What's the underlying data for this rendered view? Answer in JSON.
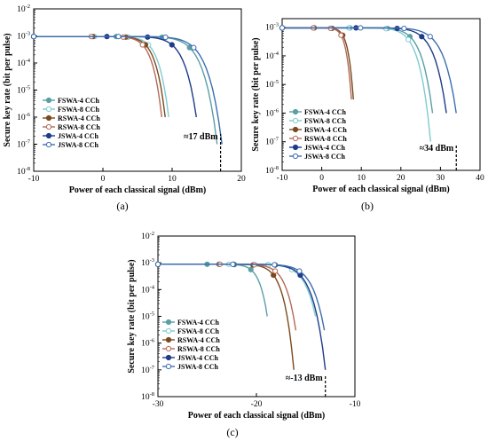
{
  "figure": {
    "background": "#ffffff",
    "colors": {
      "FSWA-4 CCh": "#5a9fa6",
      "FSWA-8 CCh": "#7ecbd4",
      "RSWA-4 CCh": "#7a4a1e",
      "RSWA-8 CCh": "#b36a57",
      "JSWA-4 CCh": "#1f3b8a",
      "JSWA-8 CCh": "#3d6fb0"
    }
  },
  "chart_data": [
    {
      "panel": "(a)",
      "type": "line",
      "xlabel": "Power of each classical signal (dBm)",
      "ylabel": "Secure key rate (bit per pulse)",
      "xlim": [
        -10,
        20
      ],
      "ylim_log10": [
        -8,
        -2
      ],
      "xticks": [
        -10,
        0,
        10,
        20
      ],
      "yticks_exp": [
        -8,
        -7,
        -6,
        -5,
        -4,
        -3,
        -2
      ],
      "log_scale_y": true,
      "grid": false,
      "legend_position": "bottom-left",
      "annotation": "≈17 dBm",
      "annotation_x": 17,
      "series": [
        {
          "name": "FSWA-4 CCh",
          "plateau": 0.00095,
          "cutoff_x": 16.5,
          "cutoff_y": 1e-07,
          "marker": "filled"
        },
        {
          "name": "FSWA-8 CCh",
          "plateau": 0.00095,
          "cutoff_x": 9.5,
          "cutoff_y": 1e-06,
          "marker": "open"
        },
        {
          "name": "RSWA-4 CCh",
          "plateau": 0.00095,
          "cutoff_x": 9.0,
          "cutoff_y": 1e-06,
          "marker": "filled"
        },
        {
          "name": "RSWA-8 CCh",
          "plateau": 0.00095,
          "cutoff_x": 8.5,
          "cutoff_y": 1e-06,
          "marker": "open"
        },
        {
          "name": "JSWA-4 CCh",
          "plateau": 0.00095,
          "cutoff_x": 13.5,
          "cutoff_y": 1e-06,
          "marker": "filled"
        },
        {
          "name": "JSWA-8 CCh",
          "plateau": 0.00095,
          "cutoff_x": 17.2,
          "cutoff_y": 1e-07,
          "marker": "open"
        }
      ]
    },
    {
      "panel": "(b)",
      "type": "line",
      "xlabel": "Power of each classical signal (dBm)",
      "ylabel": "Secure key rate (bit per pulse)",
      "xlim": [
        -10,
        40
      ],
      "ylim_log10": [
        -8,
        -2.7
      ],
      "xticks": [
        -10,
        0,
        10,
        20,
        30,
        40
      ],
      "yticks_exp": [
        -8,
        -7,
        -6,
        -5,
        -4,
        -3
      ],
      "log_scale_y": true,
      "grid": false,
      "legend_position": "middle-left",
      "annotation": "≈34 dBm",
      "annotation_x": 34,
      "series": [
        {
          "name": "FSWA-4 CCh",
          "plateau": 0.00095,
          "cutoff_x": 28.0,
          "cutoff_y": 1e-06,
          "marker": "filled"
        },
        {
          "name": "FSWA-8 CCh",
          "plateau": 0.00095,
          "cutoff_x": 27.5,
          "cutoff_y": 1e-07,
          "marker": "open"
        },
        {
          "name": "RSWA-4 CCh",
          "plateau": 0.00095,
          "cutoff_x": 8.0,
          "cutoff_y": 3e-06,
          "marker": "filled"
        },
        {
          "name": "RSWA-8 CCh",
          "plateau": 0.00095,
          "cutoff_x": 7.5,
          "cutoff_y": 3e-06,
          "marker": "open"
        },
        {
          "name": "JSWA-4 CCh",
          "plateau": 0.00095,
          "cutoff_x": 31.5,
          "cutoff_y": 1e-06,
          "marker": "filled"
        },
        {
          "name": "JSWA-8 CCh",
          "plateau": 0.00095,
          "cutoff_x": 34.0,
          "cutoff_y": 1e-06,
          "marker": "open"
        }
      ]
    },
    {
      "panel": "(c)",
      "type": "line",
      "xlabel": "Power of each classical signal (dBm)",
      "ylabel": "Secure key rate (bit per pulse)",
      "xlim": [
        -30,
        -10
      ],
      "ylim_log10": [
        -8,
        -2
      ],
      "xticks": [
        -30,
        -20,
        -10
      ],
      "yticks_exp": [
        -8,
        -7,
        -6,
        -5,
        -4,
        -3,
        -2
      ],
      "log_scale_y": true,
      "grid": false,
      "legend_position": "bottom-left",
      "annotation": "≈-13 dBm",
      "annotation_x": -13,
      "series": [
        {
          "name": "FSWA-4 CCh",
          "plateau": 0.00088,
          "cutoff_x": -18.9,
          "cutoff_y": 1e-05,
          "marker": "filled"
        },
        {
          "name": "FSWA-8 CCh",
          "plateau": 0.00088,
          "cutoff_x": -14.0,
          "cutoff_y": 1e-05,
          "marker": "open"
        },
        {
          "name": "RSWA-4 CCh",
          "plateau": 0.00088,
          "cutoff_x": -16.2,
          "cutoff_y": 1e-07,
          "marker": "filled"
        },
        {
          "name": "RSWA-8 CCh",
          "plateau": 0.00088,
          "cutoff_x": -16.0,
          "cutoff_y": 3e-06,
          "marker": "open"
        },
        {
          "name": "JSWA-4 CCh",
          "plateau": 0.00088,
          "cutoff_x": -13.0,
          "cutoff_y": 1e-07,
          "marker": "filled"
        },
        {
          "name": "JSWA-8 CCh",
          "plateau": 0.00088,
          "cutoff_x": -13.1,
          "cutoff_y": 3e-06,
          "marker": "open"
        }
      ]
    }
  ]
}
